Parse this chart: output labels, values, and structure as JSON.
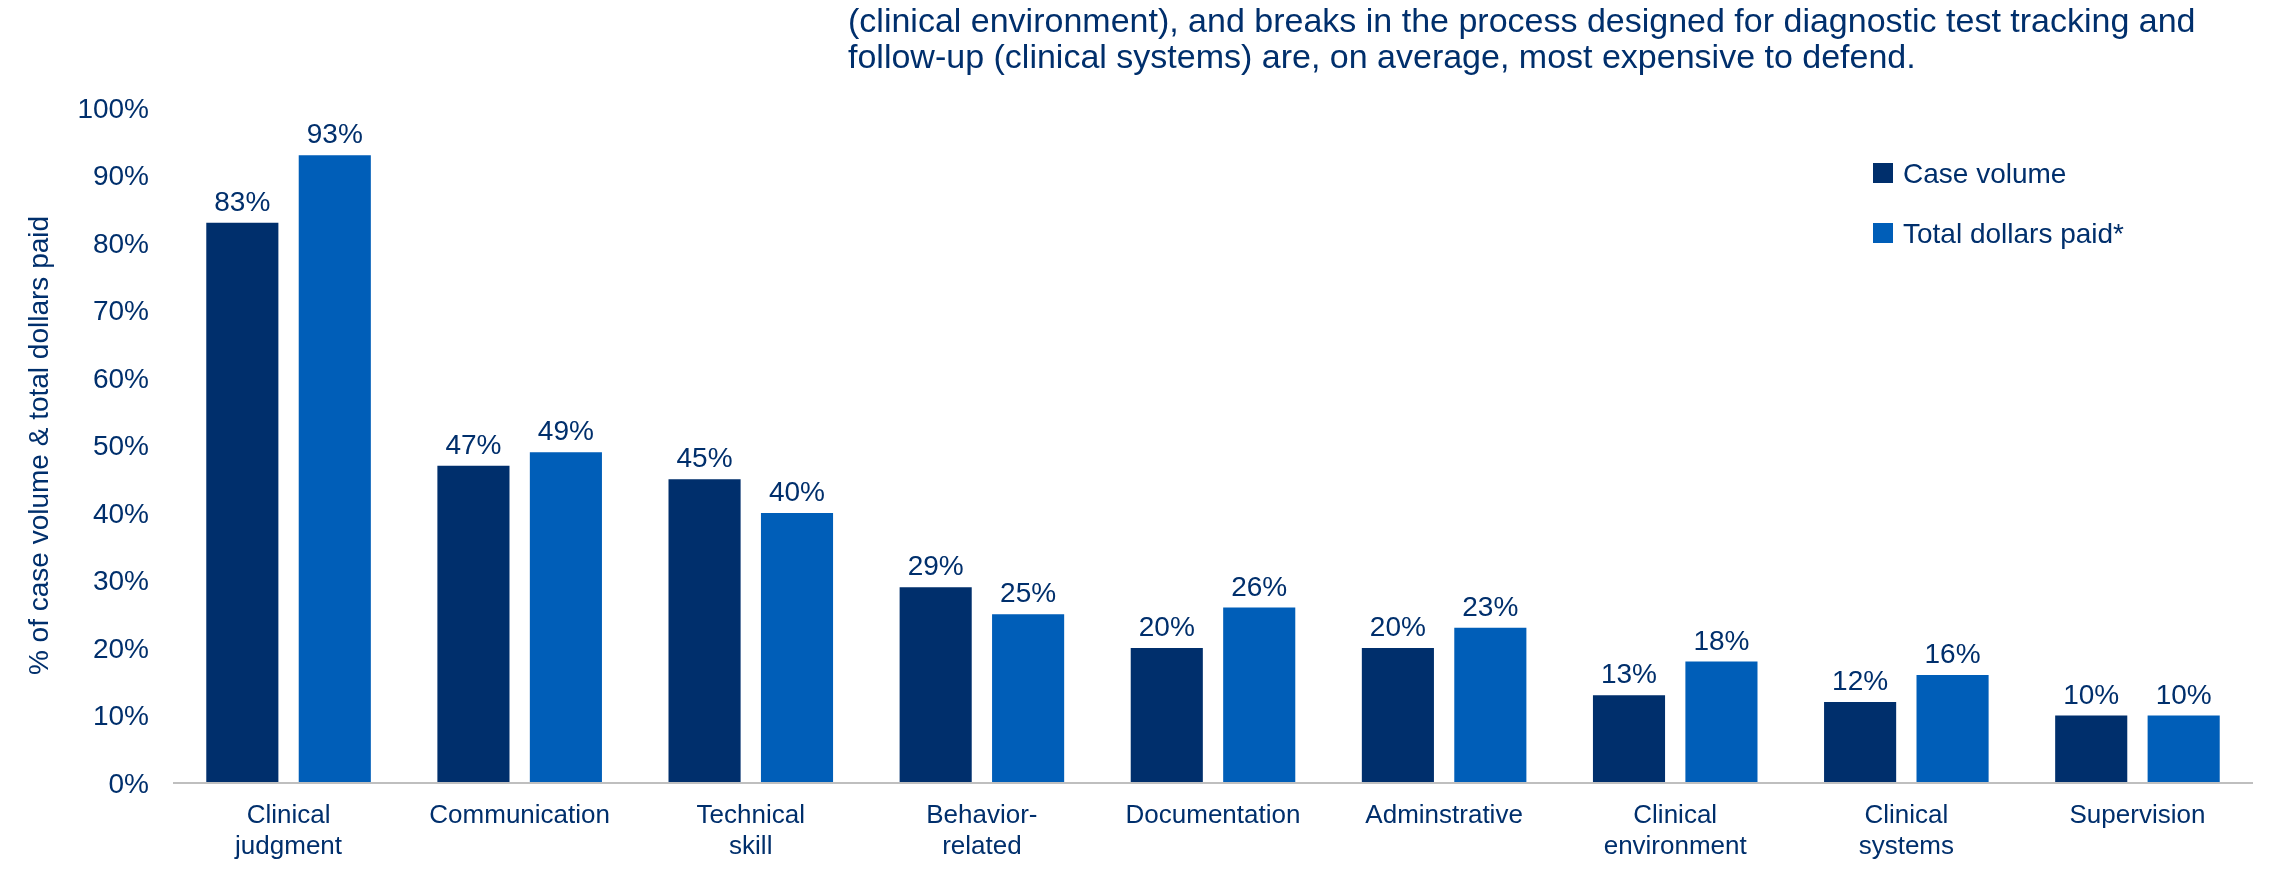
{
  "chart_data": {
    "type": "bar",
    "ylabel": "% of case volume & total dollars paid",
    "annotations": [
      "(clinical environment), and breaks in the process designed for diagnostic test tracking and",
      "follow-up (clinical systems) are, on average, most expensive to defend."
    ],
    "categories": [
      "Clinical\njudgment",
      "Communication",
      "Technical\nskill",
      "Behavior-\nrelated",
      "Documentation",
      "Adminstrative",
      "Clinical\nenvironment",
      "Clinical\nsystems",
      "Supervision"
    ],
    "series": [
      {
        "name": "Case volume",
        "color": "#002f6c",
        "values": [
          83,
          47,
          45,
          29,
          20,
          20,
          13,
          12,
          10
        ],
        "value_labels": [
          "83%",
          "47%",
          "45%",
          "29%",
          "20%",
          "20%",
          "13%",
          "12%",
          "10%"
        ]
      },
      {
        "name": "Total dollars paid*",
        "color": "#005eb8",
        "values": [
          93,
          49,
          40,
          25,
          26,
          23,
          18,
          16,
          10
        ],
        "value_labels": [
          "93%",
          "49%",
          "40%",
          "25%",
          "26%",
          "23%",
          "18%",
          "16%",
          "10%"
        ]
      }
    ],
    "ylim": [
      0,
      100
    ],
    "yticks": [
      {
        "value": 0,
        "label": "0%"
      },
      {
        "value": 10,
        "label": "10%"
      },
      {
        "value": 20,
        "label": "20%"
      },
      {
        "value": 30,
        "label": "30%"
      },
      {
        "value": 40,
        "label": "40%"
      },
      {
        "value": 50,
        "label": "50%"
      },
      {
        "value": 60,
        "label": "60%"
      },
      {
        "value": 70,
        "label": "70%"
      },
      {
        "value": 80,
        "label": "80%"
      },
      {
        "value": 90,
        "label": "90%"
      },
      {
        "value": 100,
        "label": "100%"
      }
    ],
    "grid": false,
    "legend": "top right"
  }
}
